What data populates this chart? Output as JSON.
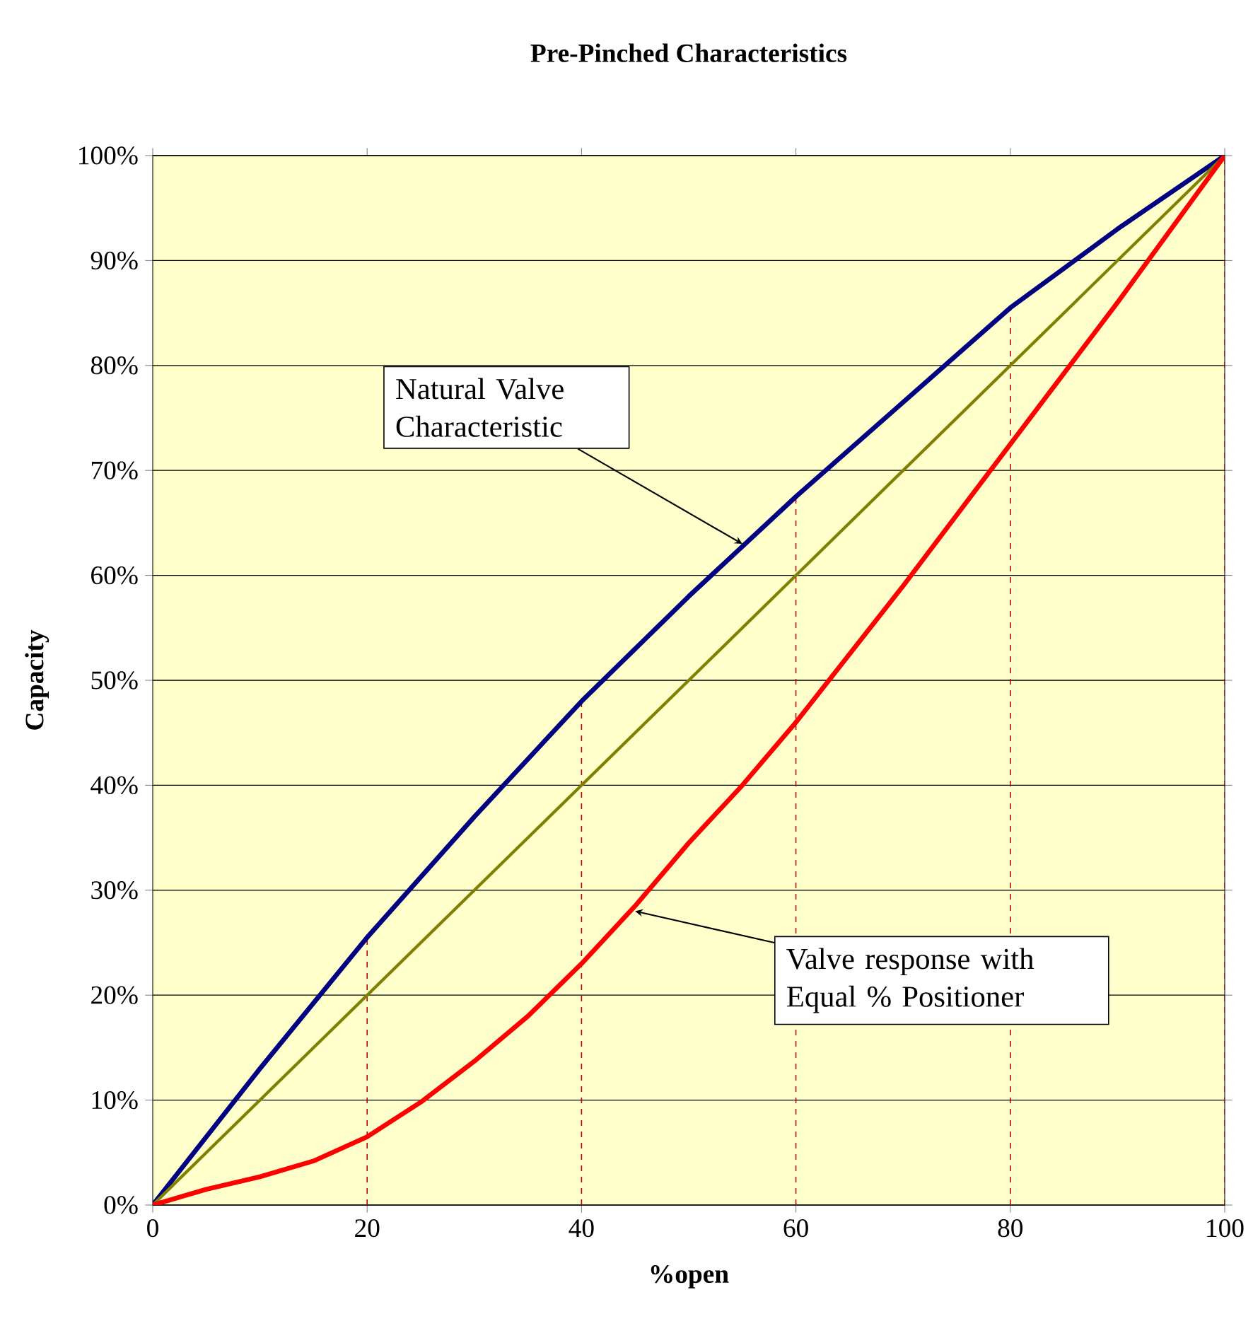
{
  "chart_data": {
    "type": "line",
    "title": "Pre-Pinched Characteristics",
    "xlabel": "%open",
    "ylabel": "Capacity",
    "xlim": [
      0,
      100
    ],
    "xticks": [
      0,
      20,
      40,
      60,
      80,
      100
    ],
    "ylim": [
      0,
      100
    ],
    "yticks": [
      {
        "value": 0,
        "label": "0%"
      },
      {
        "value": 10,
        "label": "10%"
      },
      {
        "value": 20,
        "label": "20%"
      },
      {
        "value": 30,
        "label": "30%"
      },
      {
        "value": 40,
        "label": "40%"
      },
      {
        "value": 50,
        "label": "50%"
      },
      {
        "value": 60,
        "label": "60%"
      },
      {
        "value": 70,
        "label": "70%"
      },
      {
        "value": 80,
        "label": "80%"
      },
      {
        "value": 90,
        "label": "90%"
      },
      {
        "value": 100,
        "label": "100%"
      }
    ],
    "grid": "y",
    "marker": "none",
    "line_style": "solid",
    "series": [
      {
        "color": "#000080",
        "x": [
          0,
          10,
          20,
          30,
          40,
          50,
          60,
          70,
          80,
          90,
          100
        ],
        "values": [
          0,
          13,
          25.5,
          37,
          48,
          58,
          67.5,
          76.5,
          85.5,
          93,
          100
        ]
      },
      {
        "color": "#808000",
        "x": [
          0,
          100
        ],
        "values": [
          0,
          100
        ]
      },
      {
        "color": "#ff0000",
        "x": [
          0,
          5,
          10,
          15,
          20,
          25,
          30,
          35,
          40,
          45,
          50,
          55,
          60,
          70,
          80,
          90,
          100
        ],
        "values": [
          0,
          1.5,
          2.7,
          4.2,
          6.5,
          9.8,
          13.7,
          18,
          23,
          28.5,
          34.5,
          40,
          46,
          59,
          72.5,
          86,
          100
        ]
      }
    ],
    "ref_lines": [
      {
        "axis": "x",
        "value": 20,
        "color": "#c00000",
        "line_style": "dashed"
      },
      {
        "axis": "x",
        "value": 40,
        "color": "#c00000",
        "line_style": "dashed"
      },
      {
        "axis": "x",
        "value": 60,
        "color": "#c00000",
        "line_style": "dashed"
      },
      {
        "axis": "x",
        "value": 80,
        "color": "#c00000",
        "line_style": "dashed"
      },
      {
        "axis": "x",
        "value": 100,
        "color": "#c00000",
        "line_style": "dashed"
      }
    ],
    "annotations": [
      {
        "text": "Natural Valve Characteristic",
        "x": 55,
        "y": 63
      },
      {
        "text": "Valve response with Equal % Positioner",
        "x": 45,
        "y": 28
      }
    ]
  }
}
